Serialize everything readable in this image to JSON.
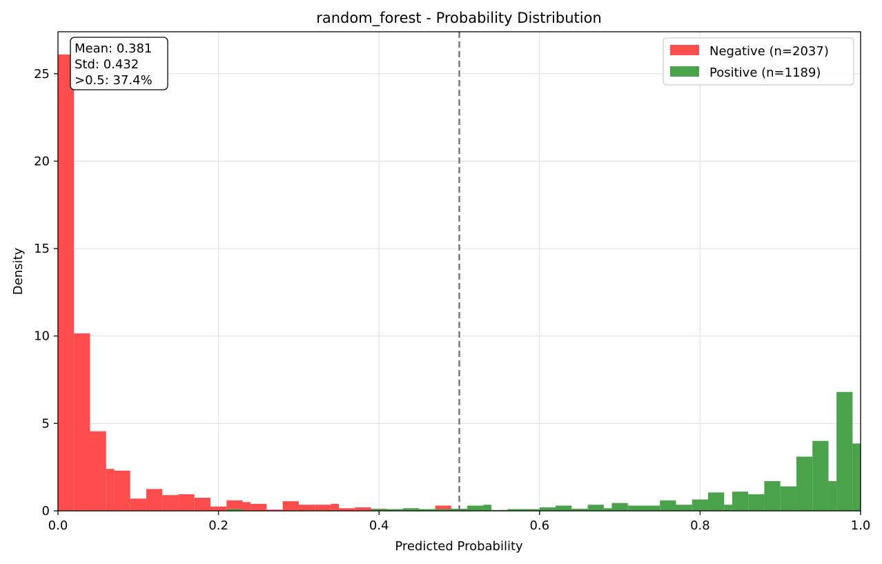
{
  "chart_data": {
    "type": "histogram",
    "title": "random_forest - Probability Distribution",
    "xlabel": "Predicted Probability",
    "ylabel": "Density",
    "xlim": [
      0.0,
      1.0
    ],
    "ylim": [
      0,
      27.4
    ],
    "xticks": [
      "0.0",
      "0.2",
      "0.4",
      "0.6",
      "0.8",
      "1.0"
    ],
    "yticks": [
      "0",
      "5",
      "10",
      "15",
      "20",
      "25"
    ],
    "grid": true,
    "legend_position": "top-right",
    "threshold": 0.5,
    "stats_box": {
      "mean": "Mean: 0.381",
      "std": "Std: 0.432",
      "above": ">0.5: 37.4%"
    },
    "series": [
      {
        "name": "Negative (n=2037)",
        "color": "#ff4d4d",
        "bins": [
          [
            0.0,
            0.02,
            26.1
          ],
          [
            0.02,
            0.04,
            10.15
          ],
          [
            0.04,
            0.06,
            4.55
          ],
          [
            0.06,
            0.07,
            2.4
          ],
          [
            0.07,
            0.09,
            2.3
          ],
          [
            0.09,
            0.11,
            0.7
          ],
          [
            0.11,
            0.13,
            1.25
          ],
          [
            0.13,
            0.15,
            0.9
          ],
          [
            0.15,
            0.17,
            0.95
          ],
          [
            0.17,
            0.19,
            0.75
          ],
          [
            0.19,
            0.21,
            0.25
          ],
          [
            0.21,
            0.23,
            0.6
          ],
          [
            0.23,
            0.24,
            0.5
          ],
          [
            0.24,
            0.26,
            0.4
          ],
          [
            0.26,
            0.28,
            0.07
          ],
          [
            0.28,
            0.3,
            0.55
          ],
          [
            0.3,
            0.32,
            0.35
          ],
          [
            0.32,
            0.34,
            0.35
          ],
          [
            0.34,
            0.35,
            0.4
          ],
          [
            0.35,
            0.37,
            0.15
          ],
          [
            0.37,
            0.39,
            0.2
          ],
          [
            0.39,
            0.41,
            0.12
          ],
          [
            0.41,
            0.43,
            0.08
          ],
          [
            0.43,
            0.45,
            0.1
          ],
          [
            0.45,
            0.47,
            0.08
          ],
          [
            0.47,
            0.49,
            0.3
          ],
          [
            0.49,
            0.51,
            0.05
          ],
          [
            0.51,
            0.53,
            0.05
          ],
          [
            0.55,
            0.57,
            0.05
          ],
          [
            0.57,
            0.59,
            0.1
          ],
          [
            0.59,
            0.61,
            0.05
          ]
        ]
      },
      {
        "name": "Positive (n=1189)",
        "color": "#4aa34a",
        "bins": [
          [
            0.21,
            0.23,
            0.1
          ],
          [
            0.39,
            0.41,
            0.1
          ],
          [
            0.41,
            0.43,
            0.1
          ],
          [
            0.43,
            0.45,
            0.15
          ],
          [
            0.45,
            0.47,
            0.1
          ],
          [
            0.47,
            0.49,
            0.1
          ],
          [
            0.49,
            0.51,
            0.12
          ],
          [
            0.51,
            0.53,
            0.3
          ],
          [
            0.53,
            0.54,
            0.35
          ],
          [
            0.54,
            0.56,
            0.05
          ],
          [
            0.56,
            0.58,
            0.1
          ],
          [
            0.58,
            0.6,
            0.1
          ],
          [
            0.6,
            0.62,
            0.2
          ],
          [
            0.62,
            0.64,
            0.3
          ],
          [
            0.64,
            0.66,
            0.12
          ],
          [
            0.66,
            0.68,
            0.35
          ],
          [
            0.68,
            0.69,
            0.15
          ],
          [
            0.69,
            0.71,
            0.45
          ],
          [
            0.71,
            0.73,
            0.3
          ],
          [
            0.73,
            0.75,
            0.3
          ],
          [
            0.75,
            0.77,
            0.6
          ],
          [
            0.77,
            0.79,
            0.35
          ],
          [
            0.79,
            0.81,
            0.65
          ],
          [
            0.81,
            0.83,
            1.05
          ],
          [
            0.83,
            0.84,
            0.35
          ],
          [
            0.84,
            0.86,
            1.1
          ],
          [
            0.86,
            0.88,
            0.95
          ],
          [
            0.88,
            0.9,
            1.7
          ],
          [
            0.9,
            0.92,
            1.4
          ],
          [
            0.92,
            0.94,
            3.1
          ],
          [
            0.94,
            0.96,
            4.0
          ],
          [
            0.96,
            0.97,
            1.7
          ],
          [
            0.97,
            0.99,
            6.8
          ],
          [
            0.99,
            1.0,
            3.85
          ]
        ]
      }
    ]
  }
}
